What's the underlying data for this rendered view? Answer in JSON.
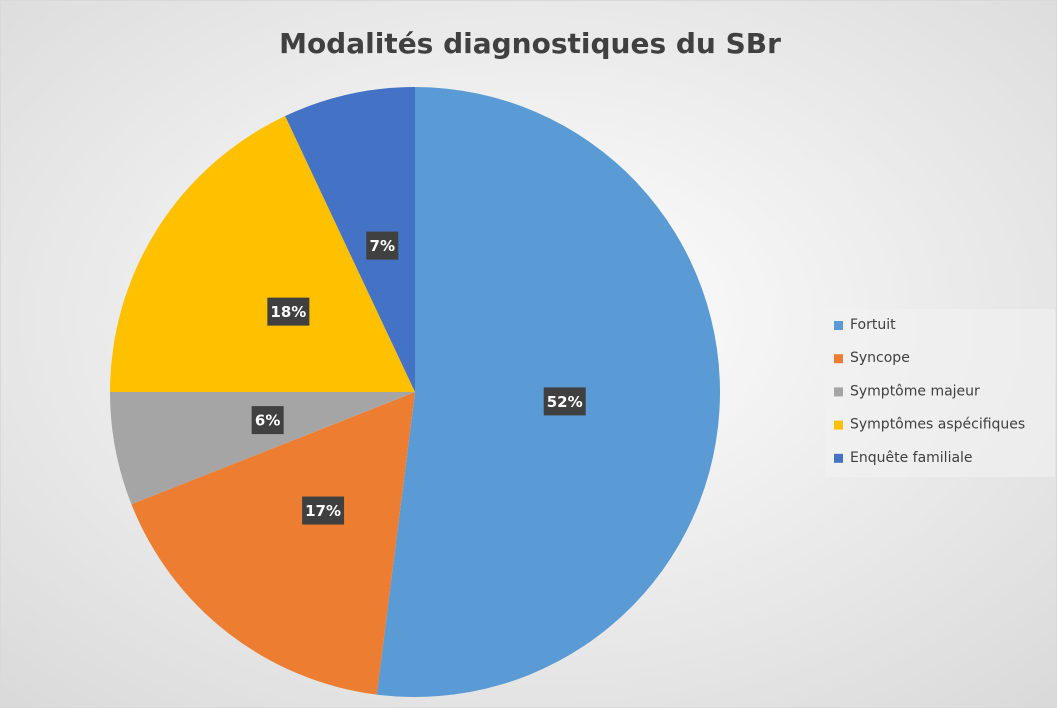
{
  "chart_data": {
    "type": "pie",
    "title": "Modalités diagnostiques du SBr",
    "categories": [
      "Fortuit",
      "Syncope",
      "Symptôme majeur",
      "Symptômes aspécifiques",
      "Enquête familiale"
    ],
    "values": [
      52,
      17,
      6,
      18,
      7
    ],
    "value_labels": [
      "52%",
      "17%",
      "6%",
      "18%",
      "7%"
    ],
    "colors": [
      "#5b9bd5",
      "#ed7d31",
      "#a5a5a5",
      "#ffc000",
      "#4472c4"
    ],
    "legend": "right"
  }
}
